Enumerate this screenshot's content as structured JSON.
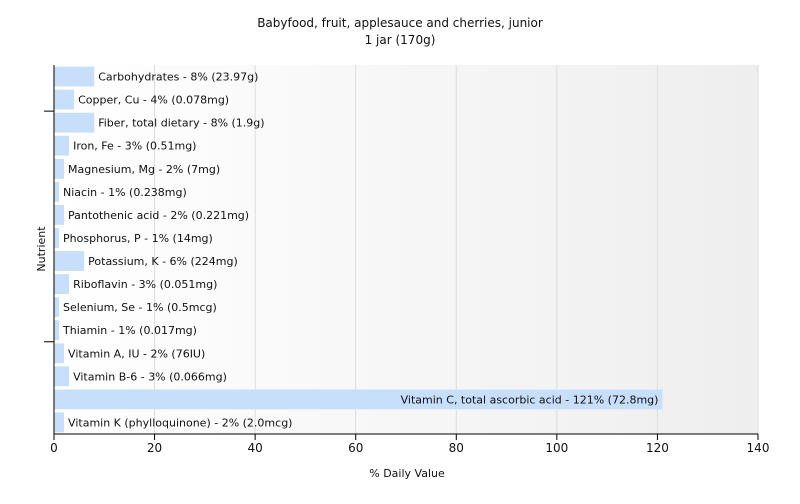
{
  "chart_data": {
    "type": "bar",
    "orientation": "horizontal",
    "title": "Babyfood, fruit, applesauce and cherries, junior",
    "subtitle": "1 jar (170g)",
    "xlabel": "% Daily Value",
    "ylabel": "Nutrient",
    "xlim": [
      0,
      140
    ],
    "xticks": [
      0,
      20,
      40,
      60,
      80,
      100,
      120,
      140
    ],
    "grid": true,
    "bar_color": "#c7dffa",
    "bars": [
      {
        "label": "Carbohydrates - 8% (23.97g)",
        "value": 8
      },
      {
        "label": "Copper, Cu - 4% (0.078mg)",
        "value": 4
      },
      {
        "label": "Fiber, total dietary - 8% (1.9g)",
        "value": 8
      },
      {
        "label": "Iron, Fe - 3% (0.51mg)",
        "value": 3
      },
      {
        "label": "Magnesium, Mg - 2% (7mg)",
        "value": 2
      },
      {
        "label": "Niacin - 1% (0.238mg)",
        "value": 1
      },
      {
        "label": "Pantothenic acid - 2% (0.221mg)",
        "value": 2
      },
      {
        "label": "Phosphorus, P - 1% (14mg)",
        "value": 1
      },
      {
        "label": "Potassium, K - 6% (224mg)",
        "value": 6
      },
      {
        "label": "Riboflavin - 3% (0.051mg)",
        "value": 3
      },
      {
        "label": "Selenium, Se - 1% (0.5mcg)",
        "value": 1
      },
      {
        "label": "Thiamin - 1% (0.017mg)",
        "value": 1
      },
      {
        "label": "Vitamin A, IU - 2% (76IU)",
        "value": 2
      },
      {
        "label": "Vitamin B-6 - 3% (0.066mg)",
        "value": 3
      },
      {
        "label": "Vitamin C, total ascorbic acid - 121% (72.8mg)",
        "value": 121
      },
      {
        "label": "Vitamin K (phylloquinone) - 2% (2.0mcg)",
        "value": 2
      }
    ]
  }
}
